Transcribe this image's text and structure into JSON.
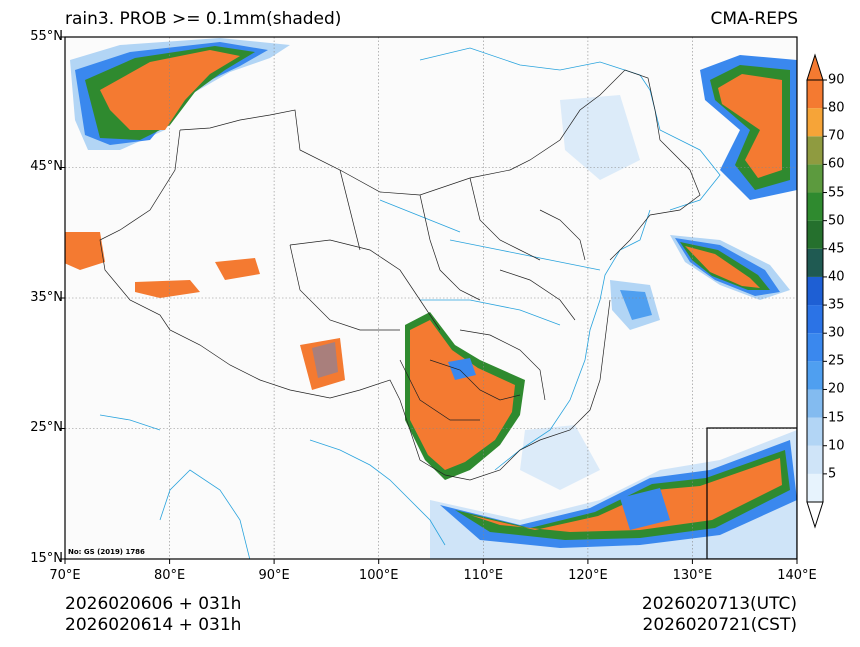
{
  "header": {
    "title_left": "rain3. PROB >= 0.1mm(shaded)",
    "title_right": "CMA-REPS"
  },
  "map": {
    "lat_labels": [
      "55°N",
      "45°N",
      "35°N",
      "25°N",
      "15°N"
    ],
    "lon_labels": [
      "70°E",
      "80°E",
      "90°E",
      "100°E",
      "110°E",
      "120°E",
      "130°E",
      "140°E"
    ],
    "credit": "No: GS (2019) 1786"
  },
  "colorbar": {
    "labels": [
      "5",
      "10",
      "15",
      "20",
      "25",
      "30",
      "35",
      "40",
      "45",
      "50",
      "55",
      "60",
      "70",
      "80",
      "90"
    ],
    "colors": [
      "#e7f3fd",
      "#cfe4f8",
      "#b2d5f5",
      "#83bbf0",
      "#4f9ff0",
      "#3a88ee",
      "#2b73e6",
      "#1e5fd4",
      "#1f5a52",
      "#25702d",
      "#2f8a2f",
      "#5c9a3e",
      "#8f9b40",
      "#f6a438",
      "#f47a31"
    ]
  },
  "colors": {
    "orange": "#f47a31",
    "green": "#2f8a2f",
    "blue": "#3a88ee",
    "light_blue": "#b2d5f5",
    "river": "#29a3dd"
  },
  "footer": {
    "init_utc": "2026020606  +  031h",
    "init_cst": "2026020614  +  031h",
    "valid_utc": "2026020713(UTC)",
    "valid_cst": "2026020721(CST)"
  }
}
